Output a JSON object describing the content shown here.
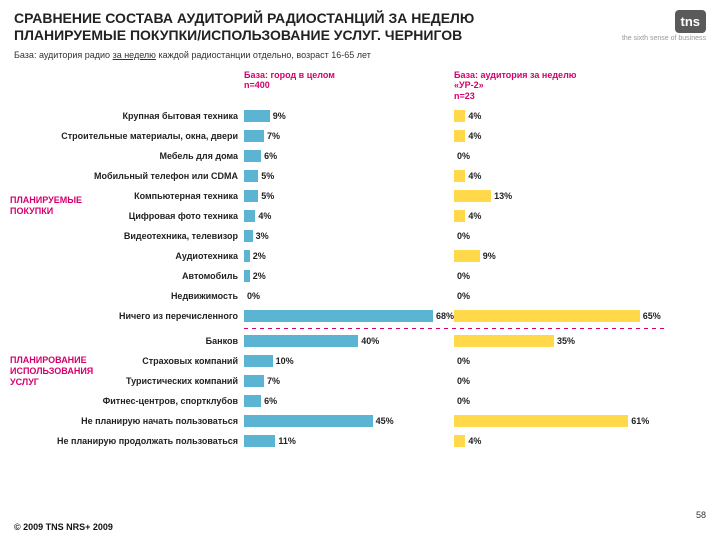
{
  "title": "СРАВНЕНИЕ СОСТАВА АУДИТОРИЙ РАДИОСТАНЦИЙ ЗА НЕДЕЛЮ ПЛАНИРУЕМЫЕ ПОКУПКИ/ИСПОЛЬЗОВАНИЕ УСЛУГ. ЧЕРНИГОВ",
  "subtitle_pre": "База: аудитория радио ",
  "subtitle_und": "за неделю",
  "subtitle_post": " каждой радиостанции отдельно, возраст 16-65 лет",
  "logo_text": "tns",
  "logo_tag": "the sixth sense of business",
  "col1_head1": "База: город в целом",
  "col1_head2": "n=400",
  "col2_head1": "База: аудитория за неделю",
  "col2_head2": "«УР-2»",
  "col2_head3": "n=23",
  "section1": "ПЛАНИРУЕМЫЕ ПОКУПКИ",
  "section2": "ПЛАНИРОВАНИЕ ИСПОЛЬЗОВАНИЯ УСЛУГ",
  "footer": "© 2009 TNS   NRS+ 2009",
  "page": "58",
  "colors": {
    "c1": "#5ab4d2",
    "c2": "#ffd94a",
    "accent": "#d6006c"
  },
  "max_pct": 70,
  "rows": [
    {
      "label": "Крупная бытовая техника",
      "v1": 9,
      "v2": 4,
      "sec": 1
    },
    {
      "label": "Строительные материалы, окна, двери",
      "v1": 7,
      "v2": 4,
      "sec": 1
    },
    {
      "label": "Мебель для дома",
      "v1": 6,
      "v2": 0,
      "sec": 1
    },
    {
      "label": "Мобильный телефон или CDMA",
      "v1": 5,
      "v2": 4,
      "sec": 1
    },
    {
      "label": "Компьютерная техника",
      "v1": 5,
      "v2": 13,
      "sec": 1
    },
    {
      "label": "Цифровая фото техника",
      "v1": 4,
      "v2": 4,
      "sec": 1
    },
    {
      "label": "Видеотехника, телевизор",
      "v1": 3,
      "v2": 0,
      "sec": 1
    },
    {
      "label": "Аудиотехника",
      "v1": 2,
      "v2": 9,
      "sec": 1
    },
    {
      "label": "Автомобиль",
      "v1": 2,
      "v2": 0,
      "sec": 1
    },
    {
      "label": "Недвижимость",
      "v1": 0,
      "v2": 0,
      "sec": 1
    },
    {
      "label": "Ничего из перечисленного",
      "v1": 68,
      "v2": 65,
      "sec": 1
    },
    {
      "label": "Банков",
      "v1": 40,
      "v2": 35,
      "sec": 2
    },
    {
      "label": "Страховых компаний",
      "v1": 10,
      "v2": 0,
      "sec": 2
    },
    {
      "label": "Туристических компаний",
      "v1": 7,
      "v2": 0,
      "sec": 2
    },
    {
      "label": "Фитнес-центров, спортклубов",
      "v1": 6,
      "v2": 0,
      "sec": 2
    },
    {
      "label": "Не планирую начать пользоваться",
      "v1": 45,
      "v2": 61,
      "sec": 2
    },
    {
      "label": "Не планирую продолжать пользоваться",
      "v1": 11,
      "v2": 4,
      "sec": 2
    }
  ]
}
